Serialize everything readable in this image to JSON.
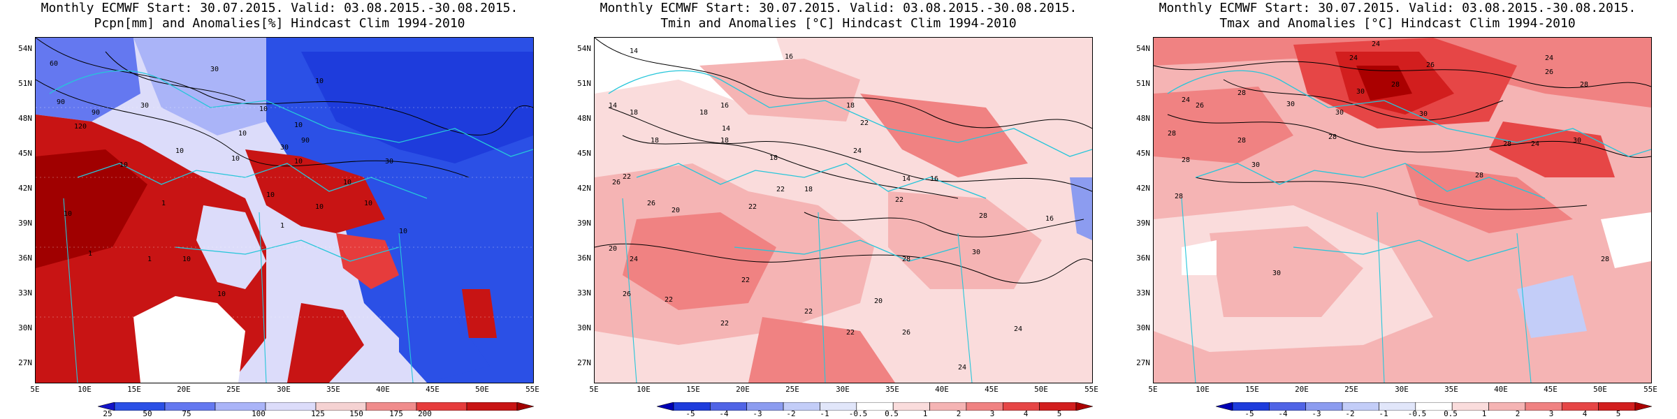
{
  "panels": [
    {
      "title1": "Monthly ECMWF Start: 30.07.2015. Valid: 03.08.2015.-30.08.2015.",
      "title2": "Pcpn[mm] and Anomalies[%] Hindcast Clim 1994-2010",
      "colorbar": {
        "labels": [
          "25",
          "50",
          "75",
          "100",
          "125",
          "150",
          "175",
          "200"
        ],
        "colors": [
          "#1414c8",
          "#2b50e6",
          "#6478f0",
          "#aab4f8",
          "#dcdcfa",
          "#f5d2d2",
          "#f08c8c",
          "#e63c3c",
          "#c81414",
          "#a00000"
        ]
      },
      "contour_labels": [
        "90",
        "90",
        "60",
        "30",
        "30",
        "10",
        "10",
        "10",
        "10",
        "10",
        "30",
        "10",
        "10",
        "120",
        "90",
        "30",
        "10",
        "10",
        "10",
        "10",
        "10",
        "10",
        "1",
        "1",
        "10",
        "10",
        "1",
        "1",
        "10"
      ]
    },
    {
      "title1": "Monthly ECMWF Start: 30.07.2015. Valid: 03.08.2015.-30.08.2015.",
      "title2": "Tmin and Anomalies [°C] Hindcast Clim 1994-2010",
      "colorbar": {
        "labels": [
          "-5",
          "-4",
          "-3",
          "-2",
          "-1",
          "-0.5",
          "0.5",
          "1",
          "2",
          "3",
          "4",
          "5"
        ],
        "colors": [
          "#0000b4",
          "#1e3cdc",
          "#5064e6",
          "#8c9cf0",
          "#c3cdf8",
          "#e1e6fa",
          "#ffffff",
          "#fadcdc",
          "#f5b4b4",
          "#f08282",
          "#e64646",
          "#d21e1e",
          "#aa0000"
        ]
      },
      "contour_labels": [
        "14",
        "16",
        "16",
        "14",
        "18",
        "18",
        "18",
        "18",
        "18",
        "14",
        "22",
        "22",
        "24",
        "26",
        "18",
        "18",
        "14",
        "16",
        "20",
        "22",
        "26",
        "22",
        "22",
        "20",
        "24",
        "26",
        "28",
        "22",
        "22",
        "22",
        "20",
        "24",
        "28",
        "30",
        "26",
        "22",
        "24",
        "22",
        "16"
      ]
    },
    {
      "title1": "Monthly ECMWF Start: 30.07.2015. Valid: 03.08.2015.-30.08.2015.",
      "title2": "Tmax and Anomalies [°C] Hindcast Clim 1994-2010",
      "colorbar": {
        "labels": [
          "-5",
          "-4",
          "-3",
          "-2",
          "-1",
          "-0.5",
          "0.5",
          "1",
          "2",
          "3",
          "4",
          "5"
        ],
        "colors": [
          "#0000b4",
          "#1e3cdc",
          "#5064e6",
          "#8c9cf0",
          "#c3cdf8",
          "#e1e6fa",
          "#ffffff",
          "#fadcdc",
          "#f5b4b4",
          "#f08282",
          "#e64646",
          "#d21e1e",
          "#aa0000"
        ]
      },
      "contour_labels": [
        "24",
        "24",
        "26",
        "28",
        "24",
        "26",
        "28",
        "30",
        "24",
        "26",
        "28",
        "30",
        "30",
        "30",
        "28",
        "28",
        "28",
        "24",
        "30",
        "28",
        "28",
        "28",
        "30",
        "28",
        "30",
        "28"
      ]
    }
  ],
  "lat_labels": [
    "54N",
    "51N",
    "48N",
    "45N",
    "42N",
    "39N",
    "36N",
    "33N",
    "30N",
    "27N"
  ],
  "lon_labels": [
    "5E",
    "10E",
    "15E",
    "20E",
    "25E",
    "30E",
    "35E",
    "40E",
    "45E",
    "50E",
    "55E"
  ]
}
